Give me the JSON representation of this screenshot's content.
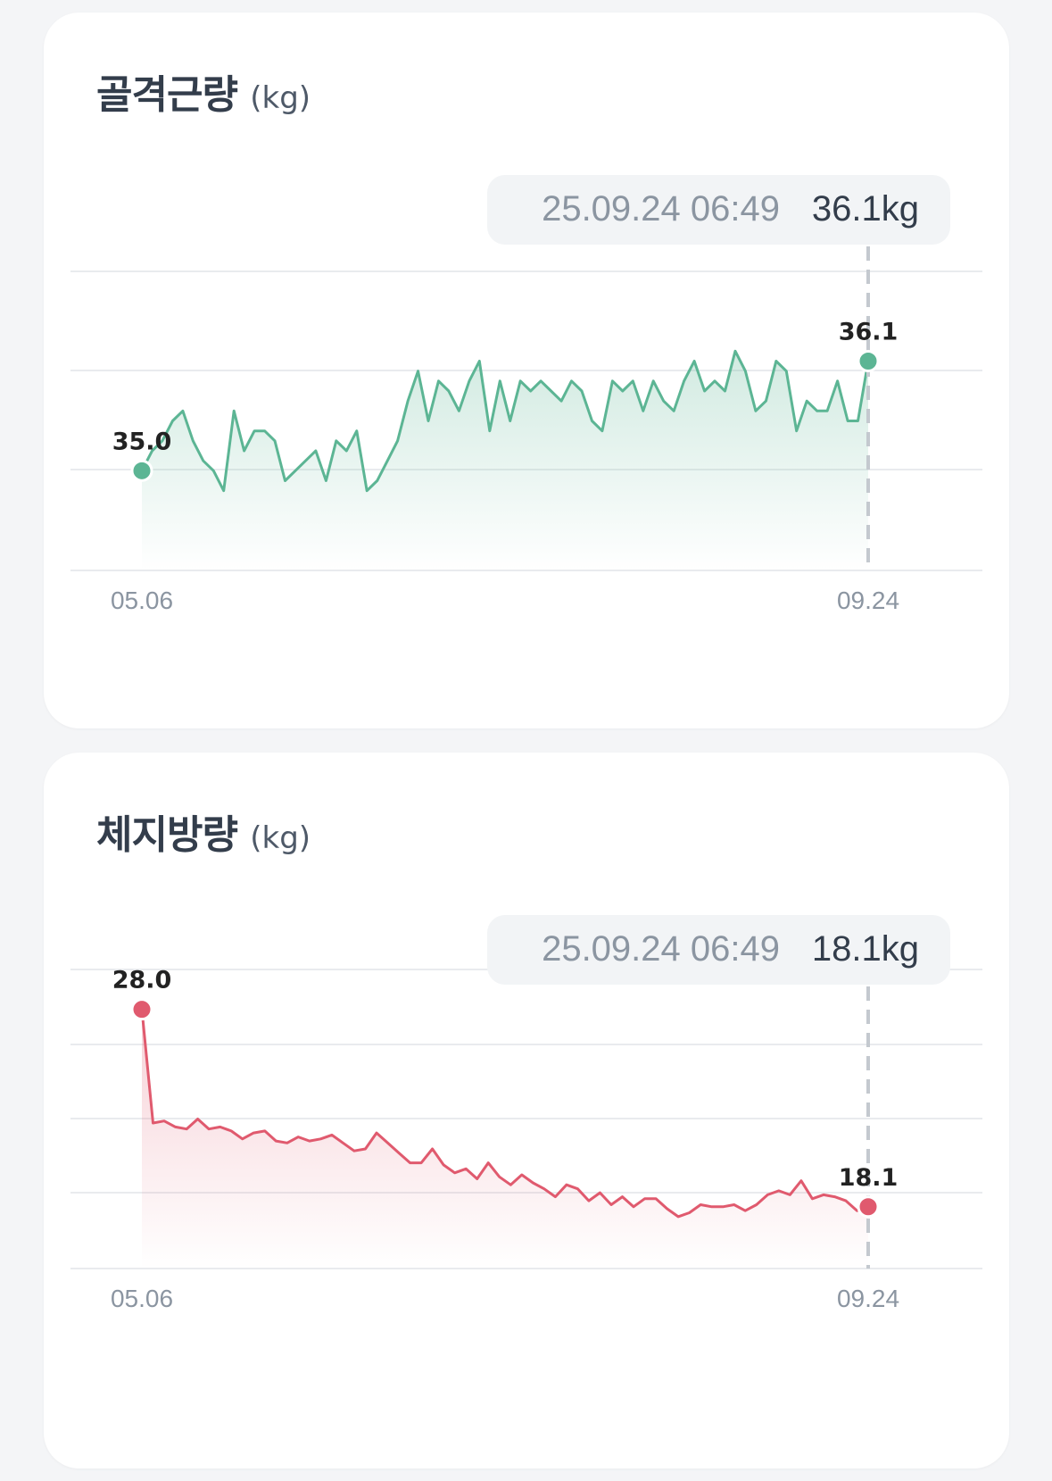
{
  "cards": [
    {
      "title": "골격근량",
      "unit": "(kg)",
      "tooltip": {
        "datetime": "25.09.24 06:49",
        "value": "36.1kg"
      },
      "color": "#5cb594"
    },
    {
      "title": "체지방량",
      "unit": "(kg)",
      "tooltip": {
        "datetime": "25.09.24 06:49",
        "value": "18.1kg"
      },
      "color": "#e05a6e"
    }
  ],
  "chart_data": [
    {
      "type": "area",
      "title": "골격근량",
      "x_tick_labels": [
        "05.06",
        "09.24"
      ],
      "start_label": "35.0",
      "end_label": "36.1",
      "ylim": [
        34.0,
        37.0
      ],
      "grid": true,
      "series": [
        {
          "values": [
            35.0,
            35.2,
            35.3,
            35.5,
            35.6,
            35.3,
            35.1,
            35.0,
            34.8,
            35.6,
            35.2,
            35.4,
            35.4,
            35.3,
            34.9,
            35.0,
            35.1,
            35.2,
            34.9,
            35.3,
            35.2,
            35.4,
            34.8,
            34.9,
            35.1,
            35.3,
            35.7,
            36.0,
            35.5,
            35.9,
            35.8,
            35.6,
            35.9,
            36.1,
            35.4,
            35.9,
            35.5,
            35.9,
            35.8,
            35.9,
            35.8,
            35.7,
            35.9,
            35.8,
            35.5,
            35.4,
            35.9,
            35.8,
            35.9,
            35.6,
            35.9,
            35.7,
            35.6,
            35.9,
            36.1,
            35.8,
            35.9,
            35.8,
            36.2,
            36.0,
            35.6,
            35.7,
            36.1,
            36.0,
            35.4,
            35.7,
            35.6,
            35.6,
            35.9,
            35.5,
            35.5,
            36.1
          ]
        }
      ]
    },
    {
      "type": "area",
      "title": "체지방량",
      "x_tick_labels": [
        "05.06",
        "09.24"
      ],
      "start_label": "28.0",
      "end_label": "18.1",
      "ylim": [
        15.0,
        30.0
      ],
      "grid": true,
      "series": [
        {
          "values": [
            28.0,
            22.3,
            22.4,
            22.1,
            22.0,
            22.5,
            22.0,
            22.1,
            21.9,
            21.5,
            21.8,
            21.9,
            21.4,
            21.3,
            21.6,
            21.4,
            21.5,
            21.7,
            21.3,
            20.9,
            21.0,
            21.8,
            21.3,
            20.8,
            20.3,
            20.3,
            21.0,
            20.2,
            19.8,
            20.0,
            19.5,
            20.3,
            19.6,
            19.2,
            19.7,
            19.3,
            19.0,
            18.6,
            19.2,
            19.0,
            18.4,
            18.8,
            18.2,
            18.6,
            18.1,
            18.5,
            18.5,
            18.0,
            17.6,
            17.8,
            18.2,
            18.1,
            18.1,
            18.2,
            17.9,
            18.2,
            18.7,
            18.9,
            18.7,
            19.4,
            18.5,
            18.7,
            18.6,
            18.4,
            17.9,
            18.1
          ]
        }
      ]
    }
  ]
}
